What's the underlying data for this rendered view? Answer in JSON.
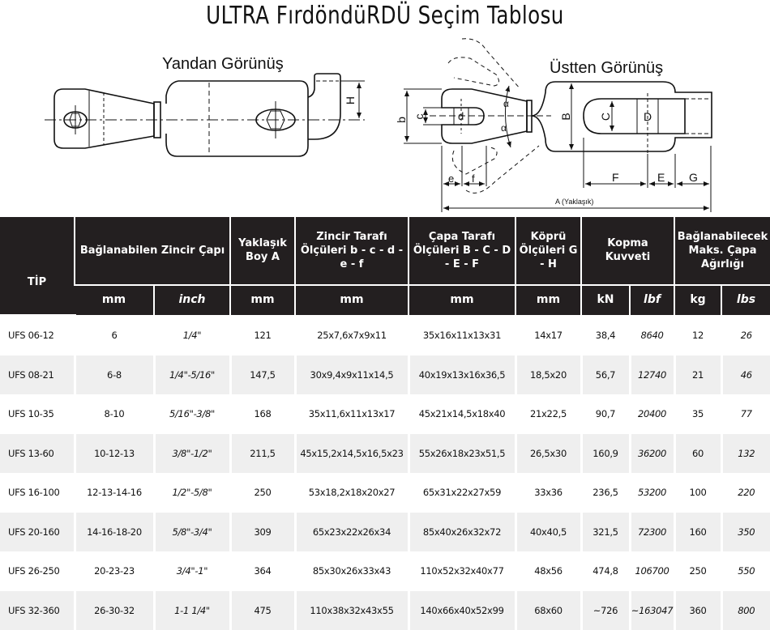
{
  "title": "ULTRA FırdöndüRDÜ Seçim Tablosu",
  "diagram": {
    "side_view_label": "Yandan Görünüş",
    "top_view_label": "Üstten Görünüş",
    "dim_labels": {
      "H": "H",
      "b": "b",
      "c": "c",
      "d": "d",
      "e": "e",
      "f": "f",
      "alpha": "α",
      "B": "B",
      "C": "C",
      "D": "D",
      "E": "E",
      "F": "F",
      "G": "G",
      "A": "A (Yaklaşık)"
    }
  },
  "table": {
    "headers": {
      "tip": "TİP",
      "chain": "Bağlanabilen Zincir Çapı",
      "length": "Yaklaşık Boy A",
      "chain_side": "Zincir Tarafı Ölçüleri b - c - d - e - f",
      "anchor_side": "Çapa Tarafı Ölçüleri B - C - D - E - F",
      "bridge": "Köprü Ölçüleri G - H",
      "break": "Kopma Kuvveti",
      "anchor_weight": "Bağlanabilecek Maks. Çapa Ağırlığı"
    },
    "units": [
      "mm",
      "inch",
      "mm",
      "mm",
      "mm",
      "mm",
      "kN",
      "lbf",
      "kg",
      "lbs"
    ],
    "rows": [
      [
        "UFS 06-12",
        "6",
        "1/4\"",
        "121",
        "25x7,6x7x9x11",
        "35x16x11x13x31",
        "14x17",
        "38,4",
        "8640",
        "12",
        "26"
      ],
      [
        "UFS 08-21",
        "6-8",
        "1/4\"-5/16\"",
        "147,5",
        "30x9,4x9x11x14,5",
        "40x19x13x16x36,5",
        "18,5x20",
        "56,7",
        "12740",
        "21",
        "46"
      ],
      [
        "UFS 10-35",
        "8-10",
        "5/16\"-3/8\"",
        "168",
        "35x11,6x11x13x17",
        "45x21x14,5x18x40",
        "21x22,5",
        "90,7",
        "20400",
        "35",
        "77"
      ],
      [
        "UFS 13-60",
        "10-12-13",
        "3/8\"-1/2\"",
        "211,5",
        "45x15,2x14,5x16,5x23",
        "55x26x18x23x51,5",
        "26,5x30",
        "160,9",
        "36200",
        "60",
        "132"
      ],
      [
        "UFS 16-100",
        "12-13-14-16",
        "1/2\"-5/8\"",
        "250",
        "53x18,2x18x20x27",
        "65x31x22x27x59",
        "33x36",
        "236,5",
        "53200",
        "100",
        "220"
      ],
      [
        "UFS 20-160",
        "14-16-18-20",
        "5/8\"-3/4\"",
        "309",
        "65x23x22x26x34",
        "85x40x26x32x72",
        "40x40,5",
        "321,5",
        "72300",
        "160",
        "350"
      ],
      [
        "UFS 26-250",
        "20-23-23",
        "3/4\"-1\"",
        "364",
        "85x30x26x33x43",
        "110x52x32x40x77",
        "48x56",
        "474,8",
        "106700",
        "250",
        "550"
      ],
      [
        "UFS 32-360",
        "26-30-32",
        "1-1 1/4\"",
        "475",
        "110x38x32x43x55",
        "140x66x40x52x99",
        "68x60",
        "~726",
        "~163047",
        "360",
        "800"
      ]
    ]
  }
}
